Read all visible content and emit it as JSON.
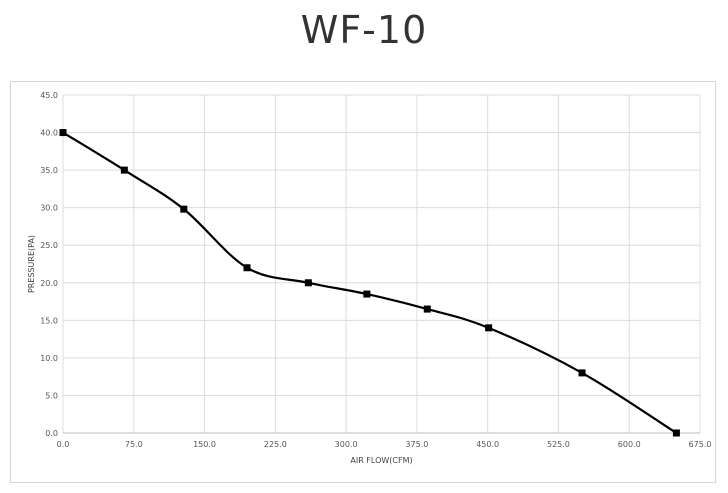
{
  "chart_data": {
    "type": "line",
    "title": "WF-10",
    "xlabel": "AIR FLOW(CFM)",
    "ylabel": "PRESSURE(PA)",
    "xlim": [
      0,
      675
    ],
    "ylim": [
      0,
      45
    ],
    "x_ticks": [
      "0.0",
      "75.0",
      "150.0",
      "225.0",
      "300.0",
      "375.0",
      "450.0",
      "525.0",
      "600.0",
      "675.0"
    ],
    "y_ticks": [
      "0.0",
      "5.0",
      "10.0",
      "15.0",
      "20.0",
      "25.0",
      "30.0",
      "35.0",
      "40.0",
      "45.0"
    ],
    "grid": true,
    "legend": "none",
    "series": [
      {
        "color": "#000000",
        "marker": "square",
        "smooth": true,
        "points": [
          {
            "x": 0,
            "y": 40.0
          },
          {
            "x": 65,
            "y": 35.0
          },
          {
            "x": 128,
            "y": 29.8
          },
          {
            "x": 195,
            "y": 22.0
          },
          {
            "x": 260,
            "y": 20.0
          },
          {
            "x": 322,
            "y": 18.5
          },
          {
            "x": 386,
            "y": 16.5
          },
          {
            "x": 451,
            "y": 14.0
          },
          {
            "x": 550,
            "y": 8.0
          },
          {
            "x": 650,
            "y": 0.0
          }
        ]
      }
    ]
  }
}
